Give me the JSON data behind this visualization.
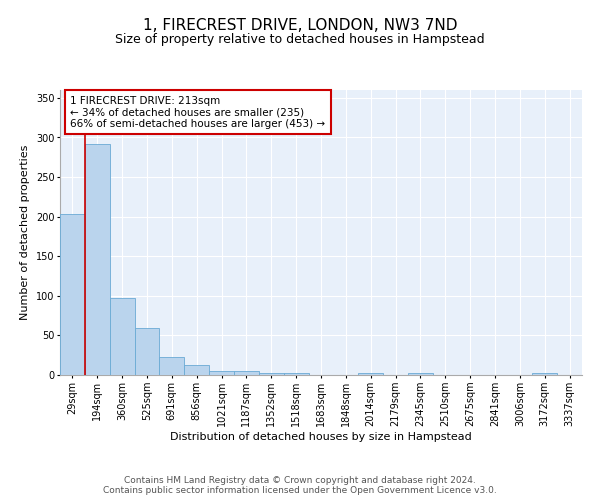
{
  "title": "1, FIRECREST DRIVE, LONDON, NW3 7ND",
  "subtitle": "Size of property relative to detached houses in Hampstead",
  "xlabel": "Distribution of detached houses by size in Hampstead",
  "ylabel": "Number of detached properties",
  "bin_labels": [
    "29sqm",
    "194sqm",
    "360sqm",
    "525sqm",
    "691sqm",
    "856sqm",
    "1021sqm",
    "1187sqm",
    "1352sqm",
    "1518sqm",
    "1683sqm",
    "1848sqm",
    "2014sqm",
    "2179sqm",
    "2345sqm",
    "2510sqm",
    "2675sqm",
    "2841sqm",
    "3006sqm",
    "3172sqm",
    "3337sqm"
  ],
  "bar_heights": [
    203,
    292,
    97,
    59,
    23,
    13,
    5,
    5,
    3,
    2,
    0,
    0,
    2,
    0,
    2,
    0,
    0,
    0,
    0,
    2,
    0
  ],
  "bar_color": "#bad4ed",
  "bar_edge_color": "#6aaad4",
  "background_color": "#e8f0fa",
  "grid_color": "#ffffff",
  "property_line_color": "#cc0000",
  "annotation_text": "1 FIRECREST DRIVE: 213sqm\n← 34% of detached houses are smaller (235)\n66% of semi-detached houses are larger (453) →",
  "annotation_box_facecolor": "#ffffff",
  "annotation_box_edgecolor": "#cc0000",
  "ylim": [
    0,
    360
  ],
  "yticks": [
    0,
    50,
    100,
    150,
    200,
    250,
    300,
    350
  ],
  "footer_text": "Contains HM Land Registry data © Crown copyright and database right 2024.\nContains public sector information licensed under the Open Government Licence v3.0.",
  "title_fontsize": 11,
  "subtitle_fontsize": 9,
  "axis_label_fontsize": 8,
  "tick_fontsize": 7,
  "annotation_fontsize": 7.5,
  "footer_fontsize": 6.5
}
